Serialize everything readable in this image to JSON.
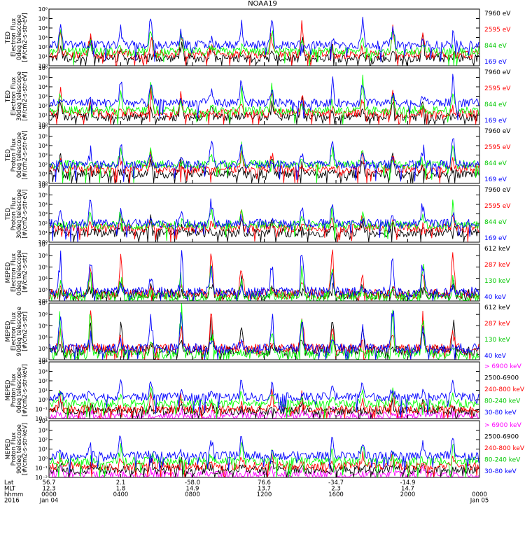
{
  "title": "NOAA19",
  "colors": {
    "black": "#000000",
    "red": "#ff0000",
    "green": "#00ff00",
    "blue": "#0000ff",
    "magenta": "#ff00ff"
  },
  "chart_data": {
    "type": "line",
    "title": "NOAA19",
    "x_ticks": [
      "0000",
      "0400",
      "0800",
      "1200",
      "1600",
      "2000",
      "0000"
    ],
    "panels": [
      {
        "ylabel": [
          "TED",
          "Electron Flux",
          "0deg telescope",
          "[#/cm2-s-str-eV]"
        ],
        "y_ticks": [
          "10⁰",
          "10¹",
          "10²",
          "10³",
          "10⁴",
          "10⁵",
          "10⁶"
        ],
        "ylim": [
          1,
          1000000
        ],
        "log_scale": true,
        "series": [
          {
            "name": "7960 eV",
            "color": "#000000",
            "base": 0.8,
            "peak": 3.0
          },
          {
            "name": "2595 eV",
            "color": "#ff0000",
            "base": 1.2,
            "peak": 4.5
          },
          {
            "name": "844 eV",
            "color": "#00ff00",
            "base": 1.5,
            "peak": 4.2
          },
          {
            "name": "169 eV",
            "color": "#0000ff",
            "base": 2.2,
            "peak": 5.2
          }
        ]
      },
      {
        "ylabel": [
          "TED",
          "Electron Flux",
          "30deg telescope",
          "[#/cm2-s-str-eV]"
        ],
        "y_ticks": [
          "10⁰",
          "10¹",
          "10²",
          "10³",
          "10⁴",
          "10⁵",
          "10⁶"
        ],
        "ylim": [
          1,
          1000000
        ],
        "log_scale": true,
        "series": [
          {
            "name": "7960 eV",
            "color": "#000000",
            "base": 0.8,
            "peak": 3.0
          },
          {
            "name": "2595 eV",
            "color": "#ff0000",
            "base": 1.2,
            "peak": 4.0
          },
          {
            "name": "844 eV",
            "color": "#00ff00",
            "base": 1.5,
            "peak": 4.5
          },
          {
            "name": "169 eV",
            "color": "#0000ff",
            "base": 2.3,
            "peak": 5.3
          }
        ]
      },
      {
        "ylabel": [
          "TED",
          "Proton Flux",
          "0deg telescope",
          "[#/cm2-s-str-eV]"
        ],
        "y_ticks": [
          "10⁰",
          "10¹",
          "10²",
          "10³",
          "10⁴",
          "10⁵",
          "10⁶"
        ],
        "ylim": [
          1,
          1000000
        ],
        "log_scale": true,
        "series": [
          {
            "name": "7960 eV",
            "color": "#000000",
            "base": 1.0,
            "peak": 3.2
          },
          {
            "name": "2595 eV",
            "color": "#ff0000",
            "base": 1.5,
            "peak": 3.5
          },
          {
            "name": "844 eV",
            "color": "#00ff00",
            "base": 2.0,
            "peak": 4.0
          },
          {
            "name": "169 eV",
            "color": "#0000ff",
            "base": 2.0,
            "peak": 5.0
          }
        ]
      },
      {
        "ylabel": [
          "TED",
          "Proton Flux",
          "30deg telescope",
          "[#/cm2-s-str-eV]"
        ],
        "y_ticks": [
          "10⁰",
          "10¹",
          "10²",
          "10³",
          "10⁴",
          "10⁵",
          "10⁶"
        ],
        "ylim": [
          1,
          1000000
        ],
        "log_scale": true,
        "series": [
          {
            "name": "7960 eV",
            "color": "#000000",
            "base": 1.0,
            "peak": 2.5
          },
          {
            "name": "2595 eV",
            "color": "#ff0000",
            "base": 1.5,
            "peak": 3.0
          },
          {
            "name": "844 eV",
            "color": "#00ff00",
            "base": 1.8,
            "peak": 3.8
          },
          {
            "name": "169 eV",
            "color": "#0000ff",
            "base": 2.0,
            "peak": 4.5
          }
        ]
      },
      {
        "ylabel": [
          "MEPED",
          "Electron Flux",
          "0deg telescope",
          "[#/cm2-s-str]"
        ],
        "y_ticks": [
          "10²",
          "10³",
          "10⁴",
          "10⁵",
          "10⁶",
          "10⁷"
        ],
        "ylim": [
          100,
          10000000
        ],
        "log_scale": true,
        "series": [
          {
            "name": "612 keV",
            "color": "#000000",
            "base": 0.6,
            "peak": 2.0
          },
          {
            "name": "287 keV",
            "color": "#ff0000",
            "base": 0.6,
            "peak": 4.5
          },
          {
            "name": "130 keV",
            "color": "#00ff00",
            "base": 0.4,
            "peak": 3.5
          },
          {
            "name": "40 keV",
            "color": "#0000ff",
            "base": 0.8,
            "peak": 4.8
          }
        ]
      },
      {
        "ylabel": [
          "MEPED",
          "Electron Flux",
          "90deg telescope",
          "[#/cm2-s-str]"
        ],
        "y_ticks": [
          "10²",
          "10³",
          "10⁴",
          "10⁵",
          "10⁶",
          "10⁷"
        ],
        "ylim": [
          100,
          10000000
        ],
        "log_scale": true,
        "series": [
          {
            "name": "612 keV",
            "color": "#000000",
            "base": 0.8,
            "peak": 4.0
          },
          {
            "name": "287 keV",
            "color": "#ff0000",
            "base": 1.0,
            "peak": 4.2
          },
          {
            "name": "130 keV",
            "color": "#00ff00",
            "base": 0.5,
            "peak": 4.6
          },
          {
            "name": "40 keV",
            "color": "#0000ff",
            "base": 1.0,
            "peak": 5.0
          }
        ]
      },
      {
        "ylabel": [
          "MEPED",
          "Proton Flux",
          "0deg telescope",
          "[#/cm2-s-str-keV]"
        ],
        "y_ticks": [
          "10⁻²",
          "10⁻¹",
          "10⁰",
          "10¹",
          "10²",
          "10³",
          "10⁴"
        ],
        "ylim": [
          0.01,
          10000
        ],
        "log_scale": true,
        "series": [
          {
            "name": "> 6900 keV",
            "color": "#ff00ff",
            "base": 0.3,
            "peak": 1.2
          },
          {
            "name": "2500-6900",
            "color": "#000000",
            "base": 0.8,
            "peak": 2.0
          },
          {
            "name": "240-800 keV",
            "color": "#ff0000",
            "base": 1.0,
            "peak": 2.8
          },
          {
            "name": "80-240 keV",
            "color": "#00ff00",
            "base": 1.6,
            "peak": 3.2
          },
          {
            "name": "30-80 keV",
            "color": "#0000ff",
            "base": 2.3,
            "peak": 4.5
          }
        ]
      },
      {
        "ylabel": [
          "MEPED",
          "Proton Flux",
          "90deg telescope",
          "[#/cm2-s-str-keV]"
        ],
        "y_ticks": [
          "10⁻²",
          "10⁻¹",
          "10⁰",
          "10¹",
          "10²",
          "10³",
          "10⁴"
        ],
        "ylim": [
          0.01,
          10000
        ],
        "log_scale": true,
        "series": [
          {
            "name": "> 6900 keV",
            "color": "#ff00ff",
            "base": 0.3,
            "peak": 1.2
          },
          {
            "name": "2500-6900",
            "color": "#000000",
            "base": 0.8,
            "peak": 2.0
          },
          {
            "name": "240-800 keV",
            "color": "#ff0000",
            "base": 1.2,
            "peak": 2.8
          },
          {
            "name": "80-240 keV",
            "color": "#00ff00",
            "base": 1.7,
            "peak": 3.5
          },
          {
            "name": "30-80 keV",
            "color": "#0000ff",
            "base": 2.3,
            "peak": 4.5
          }
        ]
      }
    ],
    "ephemeris": {
      "row_labels": [
        "Lat",
        "MLT",
        "hhmm",
        "2016"
      ],
      "columns": [
        {
          "lat": "56.7",
          "mlt": "12.3",
          "hhmm": "0000",
          "date": "Jan 04"
        },
        {
          "lat": "2.1",
          "mlt": "1.8",
          "hhmm": "0400",
          "date": ""
        },
        {
          "lat": "-58.0",
          "mlt": "14.9",
          "hhmm": "0800",
          "date": ""
        },
        {
          "lat": "76.6",
          "mlt": "13.7",
          "hhmm": "1200",
          "date": ""
        },
        {
          "lat": "-34.7",
          "mlt": "2.3",
          "hhmm": "1600",
          "date": ""
        },
        {
          "lat": "-14.9",
          "mlt": "14.7",
          "hhmm": "2000",
          "date": ""
        },
        {
          "lat": "",
          "mlt": "",
          "hhmm": "0000",
          "date": "Jan 05"
        }
      ]
    }
  }
}
